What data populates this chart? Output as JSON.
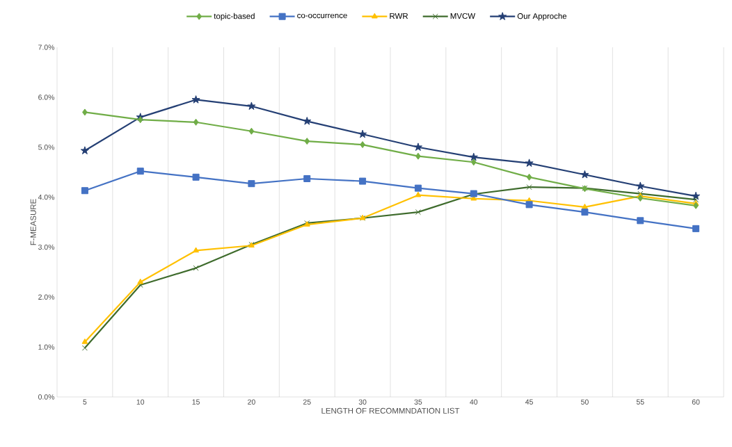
{
  "chart_data": {
    "type": "line",
    "xlabel": "LENGTH OF RECOMMNDATION LIST",
    "ylabel": "F-MEASURE",
    "categories": [
      "5",
      "10",
      "15",
      "20",
      "25",
      "30",
      "35",
      "40",
      "45",
      "50",
      "55",
      "60"
    ],
    "ylim": [
      0,
      7
    ],
    "yticks": [
      {
        "value": 0,
        "label": "0.0%"
      },
      {
        "value": 1,
        "label": "1.0%"
      },
      {
        "value": 2,
        "label": "2.0%"
      },
      {
        "value": 3,
        "label": "3.0%"
      },
      {
        "value": 4,
        "label": "4.0%"
      },
      {
        "value": 5,
        "label": "5.0%"
      },
      {
        "value": 6,
        "label": "6.0%"
      },
      {
        "value": 7,
        "label": "7.0%"
      }
    ],
    "grid": "x",
    "legend": "top",
    "series": [
      {
        "name": "topic-based",
        "color": "#70ad47",
        "marker": "diamond",
        "values": [
          5.7,
          5.55,
          5.5,
          5.32,
          5.12,
          5.05,
          4.82,
          4.7,
          4.4,
          4.17,
          3.98,
          3.83
        ]
      },
      {
        "name": "co-occurrence",
        "color": "#4472c4",
        "marker": "square",
        "values": [
          4.13,
          4.52,
          4.4,
          4.27,
          4.37,
          4.32,
          4.18,
          4.07,
          3.85,
          3.7,
          3.53,
          3.37
        ]
      },
      {
        "name": "RWR",
        "color": "#ffc000",
        "marker": "triangle",
        "values": [
          1.1,
          2.3,
          2.93,
          3.03,
          3.45,
          3.58,
          4.04,
          3.97,
          3.93,
          3.8,
          4.02,
          3.87
        ]
      },
      {
        "name": "MVCW",
        "color": "#3e6b2c",
        "marker": "cross",
        "values": [
          0.98,
          2.24,
          2.58,
          3.05,
          3.48,
          3.58,
          3.7,
          4.06,
          4.2,
          4.18,
          4.07,
          3.95
        ]
      },
      {
        "name": "Our Approche",
        "color": "#243f74",
        "marker": "star",
        "values": [
          4.93,
          5.6,
          5.95,
          5.82,
          5.52,
          5.26,
          5.0,
          4.8,
          4.68,
          4.45,
          4.22,
          4.02
        ]
      }
    ]
  }
}
